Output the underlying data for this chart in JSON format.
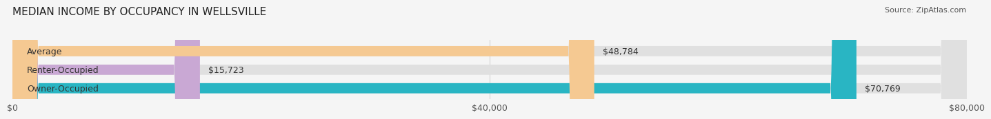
{
  "title": "MEDIAN INCOME BY OCCUPANCY IN WELLSVILLE",
  "source": "Source: ZipAtlas.com",
  "categories": [
    "Owner-Occupied",
    "Renter-Occupied",
    "Average"
  ],
  "values": [
    70769,
    15723,
    48784
  ],
  "bar_colors": [
    "#29B5C3",
    "#C9A8D4",
    "#F5C992"
  ],
  "value_labels": [
    "$70,769",
    "$15,723",
    "$48,784"
  ],
  "xlim": [
    0,
    80000
  ],
  "xticks": [
    0,
    40000,
    80000
  ],
  "xtick_labels": [
    "$0",
    "$40,000",
    "$80,000"
  ],
  "background_color": "#f5f5f5",
  "bar_background_color": "#e0e0e0",
  "title_fontsize": 11,
  "label_fontsize": 9,
  "value_fontsize": 9,
  "tick_fontsize": 9,
  "bar_height": 0.55
}
